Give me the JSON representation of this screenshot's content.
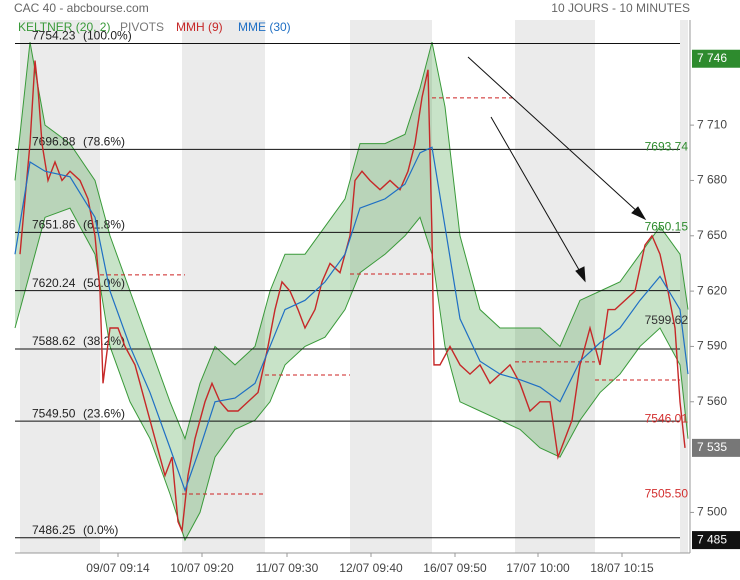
{
  "header": {
    "title": "CAC 40 - abcbourse.com",
    "period": "10 JOURS - 10 MINUTES"
  },
  "chart_data": {
    "type": "line",
    "xlim": [
      15,
      690
    ],
    "ylim": [
      7478,
      7767
    ],
    "xticks": [
      {
        "value": 118,
        "label": "09/07 09:14"
      },
      {
        "value": 202,
        "label": "10/07 09:20"
      },
      {
        "value": 287,
        "label": "11/07 09:30"
      },
      {
        "value": 371,
        "label": "12/07 09:40"
      },
      {
        "value": 455,
        "label": "16/07 09:50"
      },
      {
        "value": 538,
        "label": "17/07 10:00"
      },
      {
        "value": 622,
        "label": "18/07 10:15"
      }
    ],
    "yticks": [
      {
        "value": 7500,
        "label": "7 500"
      },
      {
        "value": 7560,
        "label": "7 560"
      },
      {
        "value": 7590,
        "label": "7 590"
      },
      {
        "value": 7620,
        "label": "7 620"
      },
      {
        "value": 7650,
        "label": "7 650"
      },
      {
        "value": 7680,
        "label": "7 680"
      },
      {
        "value": 7710,
        "label": "7 710"
      }
    ],
    "keltner": {
      "name": "KELTNER (20, 2)",
      "color": "#3a9a3a",
      "x": [
        15,
        30,
        45,
        70,
        95,
        110,
        130,
        150,
        170,
        185,
        200,
        215,
        235,
        255,
        270,
        285,
        305,
        325,
        345,
        360,
        385,
        405,
        420,
        432,
        445,
        460,
        480,
        500,
        520,
        540,
        560,
        580,
        600,
        620,
        640,
        660,
        680,
        688
      ],
      "upper": [
        7680,
        7755,
        7710,
        7700,
        7680,
        7650,
        7620,
        7590,
        7560,
        7540,
        7570,
        7590,
        7580,
        7590,
        7620,
        7640,
        7640,
        7655,
        7670,
        7700,
        7700,
        7705,
        7730,
        7755,
        7720,
        7650,
        7610,
        7600,
        7600,
        7600,
        7590,
        7615,
        7620,
        7625,
        7640,
        7655,
        7640,
        7610
      ],
      "lower": [
        7600,
        7630,
        7660,
        7665,
        7640,
        7590,
        7560,
        7540,
        7510,
        7485,
        7500,
        7530,
        7545,
        7550,
        7560,
        7580,
        7590,
        7595,
        7610,
        7630,
        7640,
        7650,
        7660,
        7640,
        7590,
        7560,
        7555,
        7550,
        7545,
        7535,
        7530,
        7550,
        7565,
        7575,
        7590,
        7600,
        7580,
        7540
      ]
    },
    "series": [
      {
        "name": "MMH (9)",
        "color": "#c62828",
        "x": [
          20,
          25,
          30,
          35,
          38,
          42,
          48,
          55,
          62,
          70,
          80,
          88,
          95,
          100,
          103,
          110,
          118,
          125,
          135,
          145,
          155,
          165,
          172,
          178,
          182,
          188,
          195,
          205,
          212,
          220,
          228,
          238,
          248,
          258,
          268,
          275,
          282,
          290,
          298,
          305,
          315,
          322,
          330,
          340,
          350,
          355,
          362,
          370,
          380,
          390,
          400,
          408,
          415,
          422,
          428,
          432,
          434,
          440,
          450,
          460,
          470,
          480,
          490,
          500,
          510,
          520,
          530,
          540,
          550,
          558,
          565,
          572,
          580,
          590,
          600,
          608,
          615,
          625,
          635,
          645,
          652,
          660,
          668,
          675,
          680,
          685
        ],
        "values": [
          7640,
          7670,
          7700,
          7745,
          7730,
          7700,
          7680,
          7690,
          7680,
          7685,
          7680,
          7670,
          7650,
          7620,
          7570,
          7600,
          7600,
          7590,
          7580,
          7560,
          7540,
          7520,
          7530,
          7495,
          7490,
          7520,
          7540,
          7560,
          7570,
          7560,
          7555,
          7555,
          7560,
          7565,
          7590,
          7610,
          7625,
          7620,
          7610,
          7600,
          7610,
          7625,
          7635,
          7630,
          7650,
          7680,
          7685,
          7680,
          7675,
          7680,
          7675,
          7685,
          7700,
          7725,
          7740,
          7650,
          7580,
          7580,
          7590,
          7580,
          7575,
          7580,
          7570,
          7575,
          7580,
          7570,
          7555,
          7560,
          7560,
          7530,
          7540,
          7550,
          7580,
          7600,
          7580,
          7610,
          7610,
          7615,
          7620,
          7645,
          7650,
          7640,
          7620,
          7600,
          7560,
          7535
        ]
      },
      {
        "name": "MME (30)",
        "color": "#1f6fc4",
        "x": [
          15,
          30,
          45,
          70,
          95,
          110,
          130,
          150,
          170,
          185,
          200,
          215,
          235,
          255,
          270,
          285,
          305,
          325,
          345,
          360,
          385,
          405,
          420,
          432,
          445,
          460,
          480,
          500,
          520,
          540,
          560,
          580,
          600,
          620,
          640,
          660,
          680,
          688
        ],
        "values": [
          7640,
          7690,
          7685,
          7682,
          7660,
          7620,
          7590,
          7565,
          7535,
          7512,
          7535,
          7560,
          7562,
          7570,
          7590,
          7610,
          7615,
          7625,
          7640,
          7665,
          7670,
          7678,
          7695,
          7698,
          7655,
          7605,
          7582,
          7575,
          7572,
          7568,
          7560,
          7582,
          7592,
          7600,
          7615,
          7628,
          7610,
          7575
        ]
      }
    ],
    "pivots": {
      "name": "PIVOTS",
      "color": "#cc2222",
      "segments": [
        {
          "x": [
            100,
            185
          ],
          "value": 7628.8
        },
        {
          "x": [
            182,
            265
          ],
          "value": 7510
        },
        {
          "x": [
            265,
            350
          ],
          "value": 7574.5
        },
        {
          "x": [
            350,
            432
          ],
          "value": 7629.3
        },
        {
          "x": [
            432,
            515
          ],
          "value": 7724.8
        },
        {
          "x": [
            515,
            595
          ],
          "value": 7581.6
        },
        {
          "x": [
            595,
            680
          ],
          "value": 7571.8
        }
      ]
    },
    "fib_levels": [
      {
        "value": 7754.23,
        "label": "7754.23",
        "pct": "(100.0%)"
      },
      {
        "value": 7696.88,
        "label": "7696.88",
        "pct": "(78.6%)"
      },
      {
        "value": 7651.86,
        "label": "7651.86",
        "pct": "(61.8%)"
      },
      {
        "value": 7620.24,
        "label": "7620.24",
        "pct": "(50.0%)"
      },
      {
        "value": 7588.62,
        "label": "7588.62",
        "pct": "(38.2%)"
      },
      {
        "value": 7549.5,
        "label": "7549.50",
        "pct": "(23.6%)"
      },
      {
        "value": 7486.25,
        "label": "7486.25",
        "pct": "(0.0%)"
      }
    ],
    "price_labels": [
      {
        "value": 7693.74,
        "label": "7693.74",
        "color": "#2e8b2e"
      },
      {
        "value": 7650.15,
        "label": "7650.15",
        "color": "#2e8b2e"
      },
      {
        "value": 7599.62,
        "label": "7599.62",
        "color": "#333333"
      },
      {
        "value": 7546.01,
        "label": "7546.01",
        "color": "#d32f2f"
      },
      {
        "value": 7505.5,
        "label": "7505.50",
        "color": "#d32f2f"
      }
    ],
    "price_boxes": [
      {
        "value": 7746,
        "label": "7 746",
        "color": "#2e8b2e"
      },
      {
        "value": 7535,
        "label": "7 535",
        "color": "#777777"
      },
      {
        "value": 7485,
        "label": "7 485",
        "color": "#111111"
      }
    ]
  }
}
